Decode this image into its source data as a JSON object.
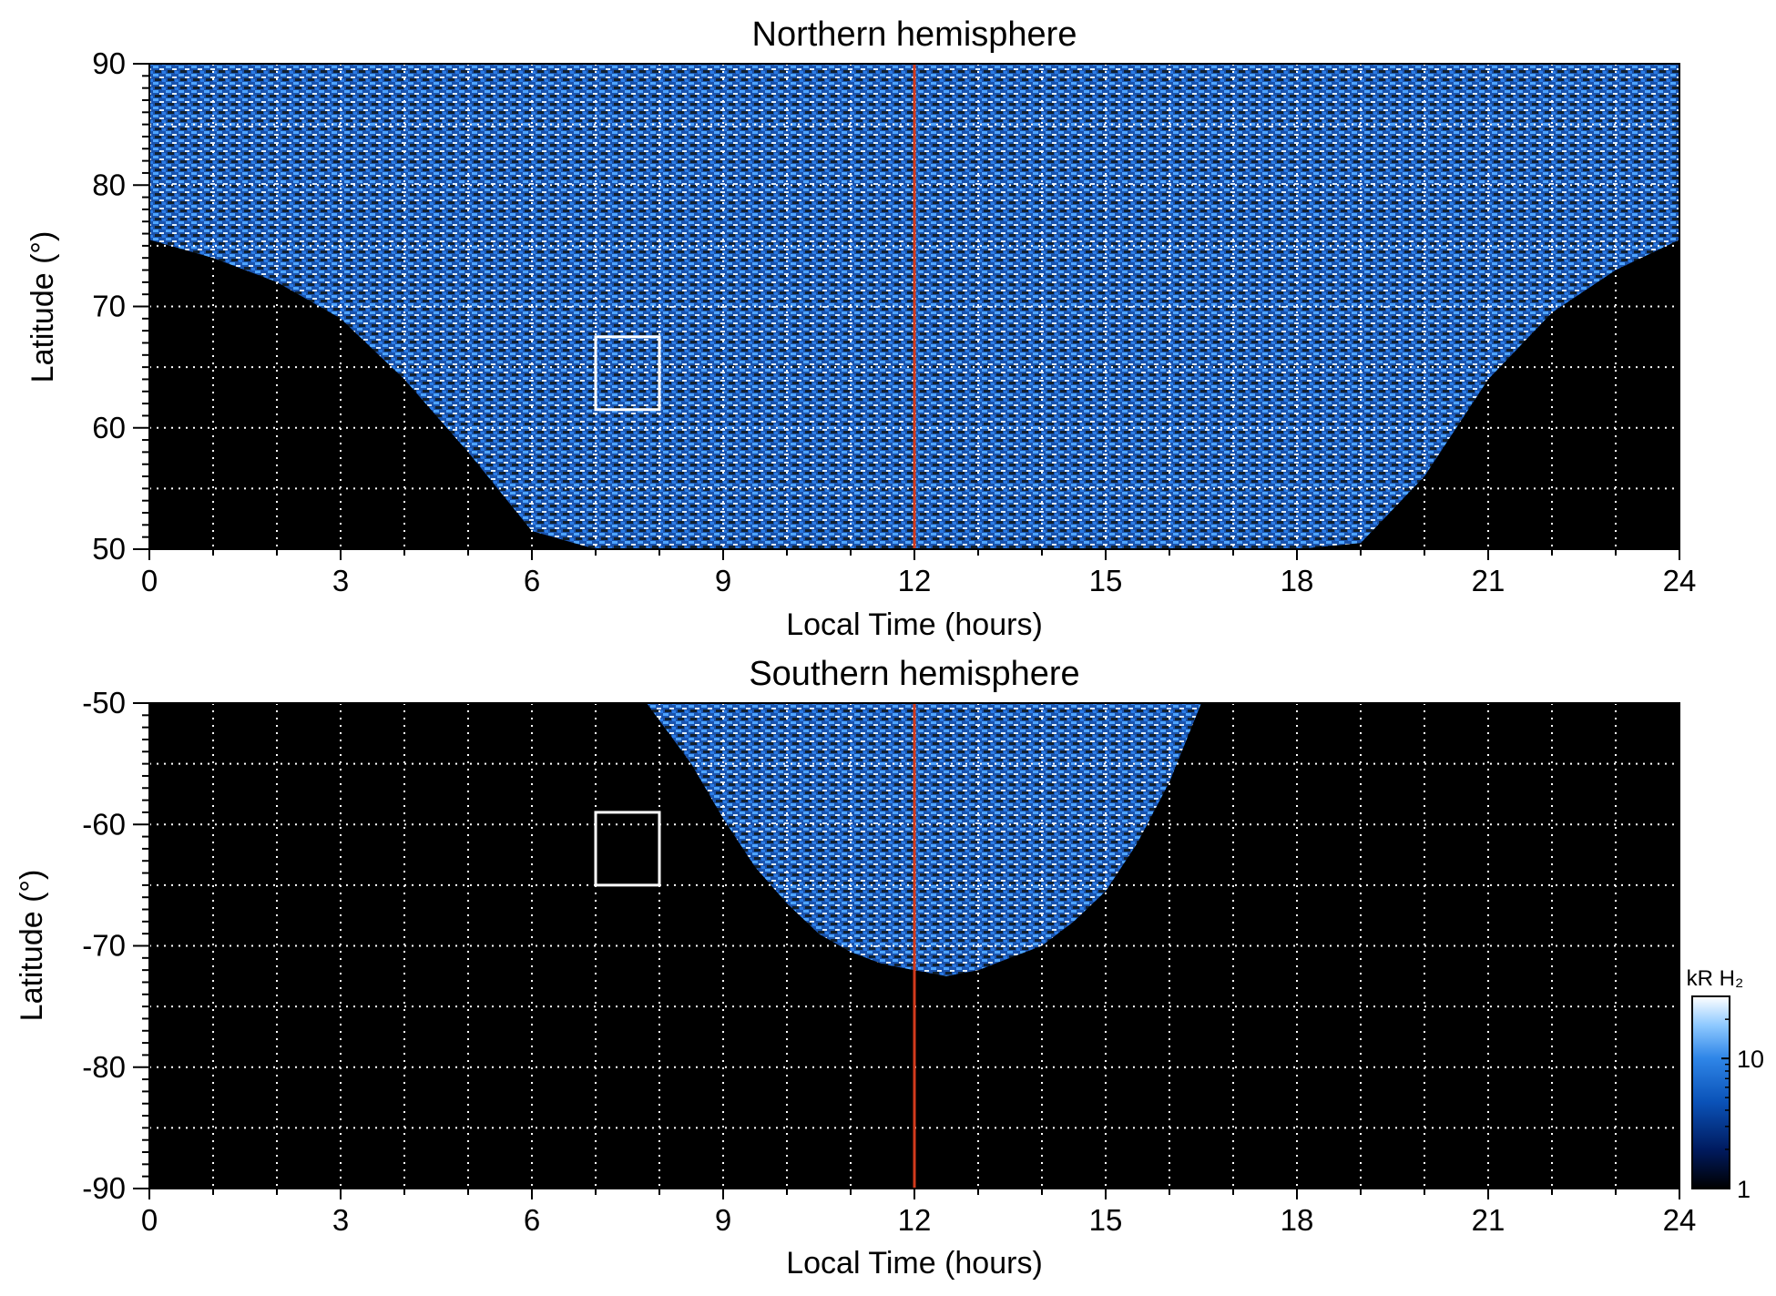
{
  "colors": {
    "background": "#000000",
    "grid": "#ffffff",
    "noon_line": "#d23a1c",
    "box": "#ffffff",
    "colormap": [
      "#000000",
      "#001a5e",
      "#0a52b8",
      "#2f86e8",
      "#8ec9ff",
      "#ffffff"
    ]
  },
  "chart_data": [
    {
      "type": "heatmap",
      "id": "north",
      "title": "Northern hemisphere",
      "xlabel": "Local Time (hours)",
      "ylabel": "Latitude (°)",
      "xlim": [
        0,
        24
      ],
      "ylim": [
        50,
        90
      ],
      "xticks": [
        0,
        3,
        6,
        9,
        12,
        15,
        18,
        21,
        24
      ],
      "xtick_labels": [
        "0",
        "3",
        "6",
        "9",
        "12",
        "15",
        "18",
        "21",
        "24"
      ],
      "yticks": [
        50,
        60,
        70,
        80,
        90
      ],
      "ytick_labels": [
        "50",
        "60",
        "70",
        "80",
        "90"
      ],
      "grid": {
        "x_step": 1,
        "y_step": 5,
        "style": "dotted"
      },
      "noon_line_x": 12,
      "highlight_box": {
        "x": [
          7,
          8
        ],
        "y": [
          61.5,
          67.5
        ]
      },
      "coverage_boundary": {
        "lt": [
          0,
          1,
          2,
          3,
          4,
          5,
          6,
          7,
          8,
          9,
          10,
          11,
          12,
          13,
          14,
          15,
          16,
          17,
          18,
          19,
          20,
          21,
          22,
          23,
          24
        ],
        "lat": [
          75.5,
          74,
          72,
          69,
          64,
          58,
          51.5,
          50,
          50,
          50,
          50,
          50,
          50,
          50,
          50,
          50,
          50,
          50,
          50,
          50.5,
          56,
          64,
          69.5,
          73,
          75.5
        ]
      }
    },
    {
      "type": "heatmap",
      "id": "south",
      "title": "Southern hemisphere",
      "xlabel": "Local Time (hours)",
      "ylabel": "Latitude (°)",
      "xlim": [
        0,
        24
      ],
      "ylim": [
        -90,
        -50
      ],
      "xticks": [
        0,
        3,
        6,
        9,
        12,
        15,
        18,
        21,
        24
      ],
      "xtick_labels": [
        "0",
        "3",
        "6",
        "9",
        "12",
        "15",
        "18",
        "21",
        "24"
      ],
      "yticks": [
        -90,
        -80,
        -70,
        -60,
        -50
      ],
      "ytick_labels": [
        "-90",
        "-80",
        "-70",
        "-60",
        "-50"
      ],
      "grid": {
        "x_step": 1,
        "y_step": 5,
        "style": "dotted"
      },
      "noon_line_x": 12,
      "highlight_box": {
        "x": [
          7,
          8
        ],
        "y": [
          -65,
          -59
        ]
      },
      "coverage_boundary": {
        "lt": [
          7.8,
          8.5,
          9,
          9.5,
          10,
          10.5,
          11,
          11.5,
          12,
          12.5,
          13,
          13.5,
          14,
          14.5,
          15,
          15.5,
          16,
          16.5
        ],
        "lat": [
          -50,
          -55,
          -59.5,
          -63.5,
          -66.5,
          -69,
          -70.5,
          -71.5,
          -72,
          -72.5,
          -72,
          -71,
          -70,
          -68,
          -65.5,
          -61.5,
          -56.5,
          -50
        ]
      },
      "colorbar": {
        "label": "kR H₂",
        "scale": "log",
        "range": [
          1,
          30
        ],
        "ticks": [
          1,
          10
        ],
        "tick_labels": [
          "1",
          "10"
        ]
      }
    }
  ]
}
